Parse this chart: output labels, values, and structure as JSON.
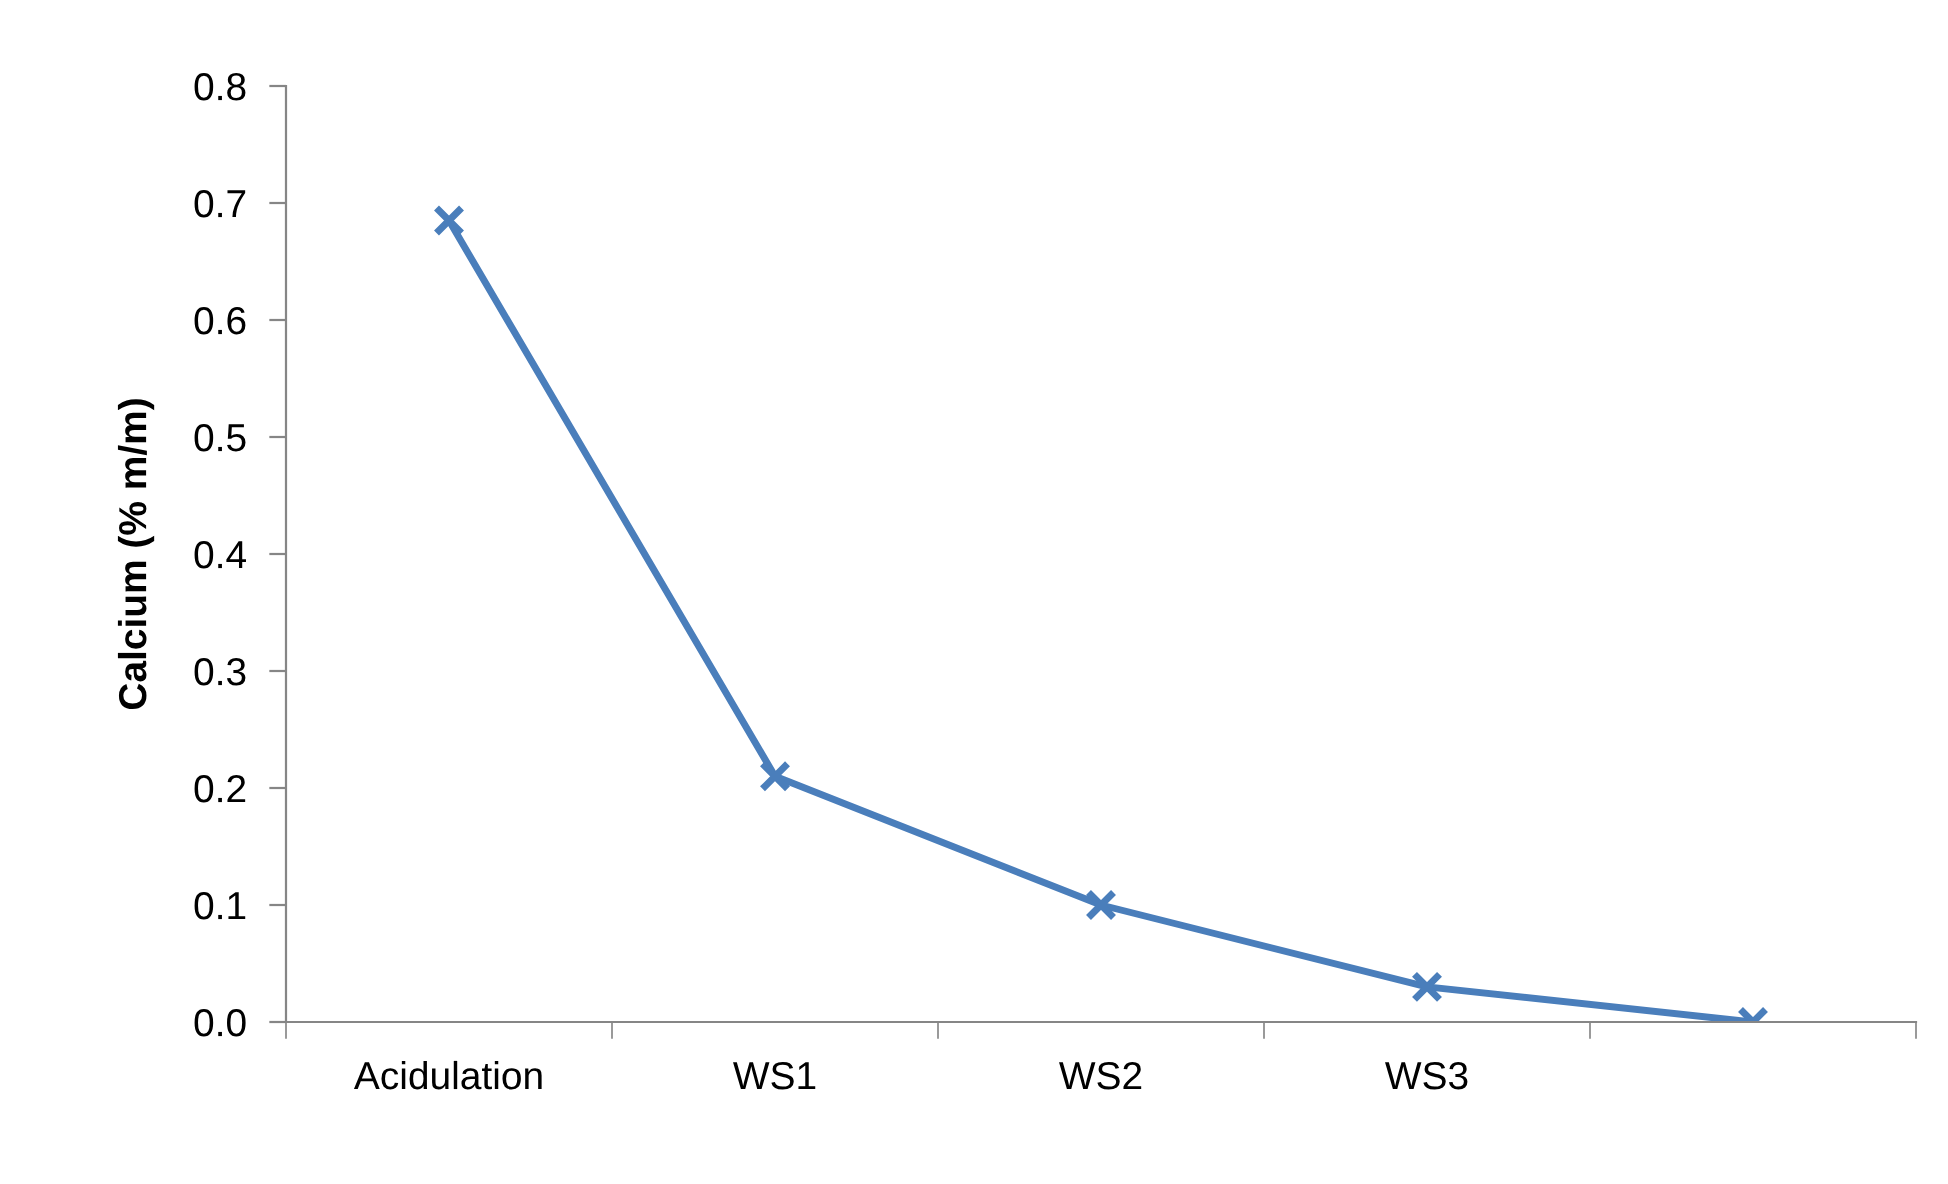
{
  "chart_data": {
    "type": "line",
    "ylabel": "Calcium (% m/m)",
    "categories": [
      "Acidulation",
      "WS1",
      "WS2",
      "WS3",
      null
    ],
    "series": [
      {
        "color": "#4a7ebb",
        "values": [
          0.685,
          0.21,
          0.1,
          0.03,
          0.0
        ]
      }
    ],
    "ylim": [
      0,
      0.8
    ],
    "yticks": [
      {
        "value": 0,
        "label": "0.0"
      },
      0.1,
      0.2,
      0.3,
      0.4,
      0.5,
      0.6,
      0.7,
      0.8
    ],
    "marker": "cross",
    "line_style": "solid",
    "grid": false,
    "legend": false
  }
}
